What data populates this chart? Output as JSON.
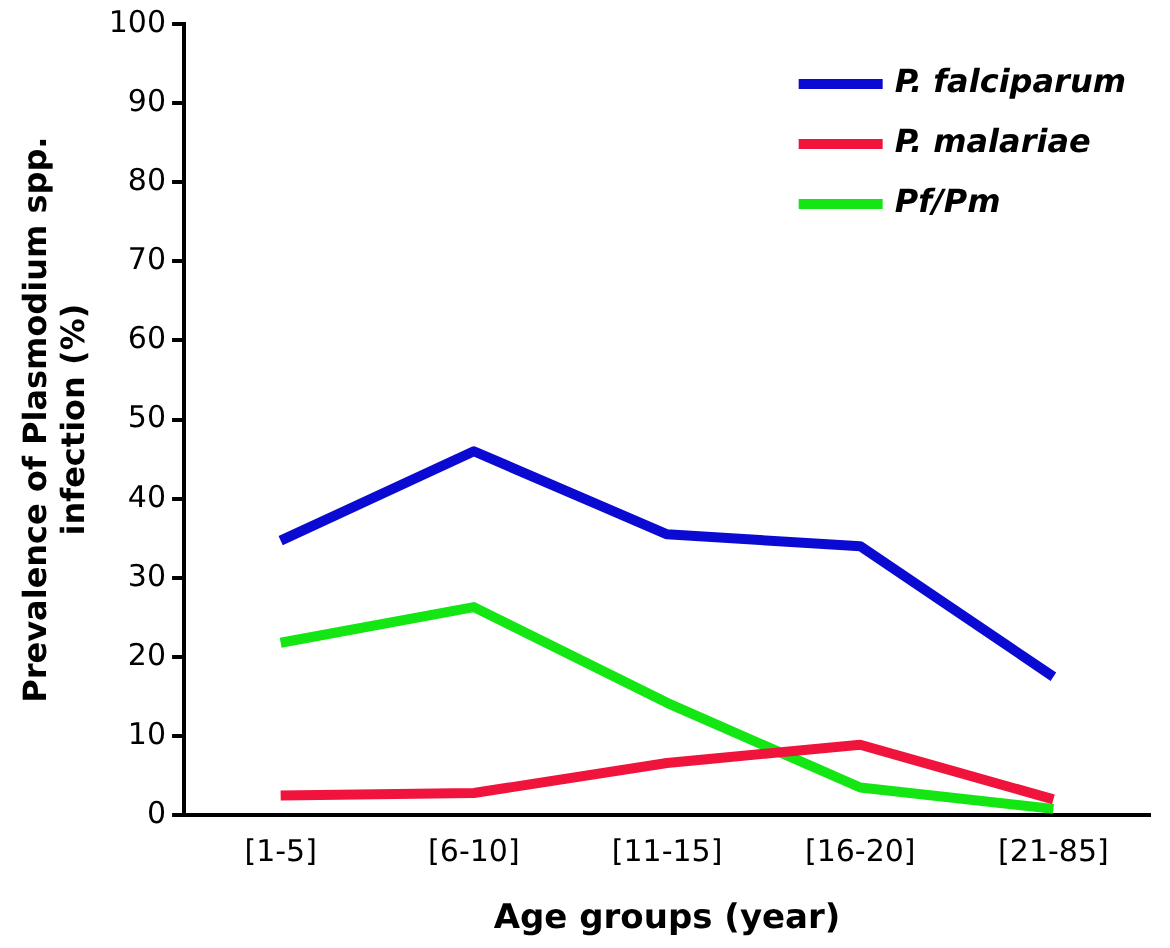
{
  "chart_data": {
    "type": "line",
    "xlabel": "Age groups (year)",
    "ylabel": "Prevalence of Plasmodium spp. infection (%)",
    "categories": [
      "[1-5]",
      "[6-10]",
      "[11-15]",
      "[16-20]",
      "[21-85]"
    ],
    "series": [
      {
        "name": "P. falciparum",
        "color": "#0a0ad2",
        "values": [
          34.7,
          46,
          35.5,
          34,
          17.5
        ]
      },
      {
        "name": "P. malariae",
        "color": "#f0143c",
        "values": [
          2.5,
          2.8,
          6.6,
          8.9,
          2
        ]
      },
      {
        "name": "Pf/Pm",
        "color": "#14e614",
        "values": [
          21.8,
          26.3,
          14.2,
          3.5,
          0.8
        ]
      }
    ],
    "ylim": [
      0,
      100
    ],
    "yticks": [
      0,
      10,
      20,
      30,
      40,
      50,
      60,
      70,
      80,
      90,
      100
    ],
    "grid": false,
    "legend": "top right",
    "marker": "none",
    "line_style": "solid"
  }
}
